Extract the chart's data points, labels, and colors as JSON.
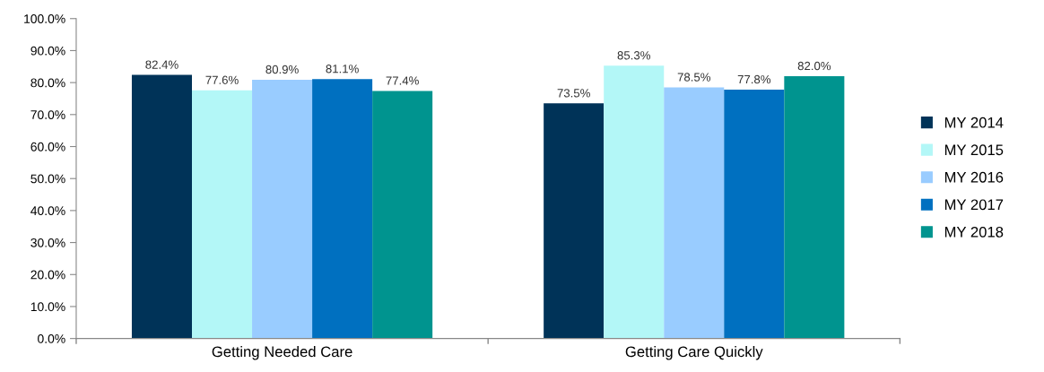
{
  "chart_data": {
    "type": "bar",
    "categories": [
      "Getting Needed Care",
      "Getting Care Quickly"
    ],
    "series": [
      {
        "name": "MY 2014",
        "color": "#003358",
        "values": [
          82.4,
          73.5
        ],
        "value_labels": [
          "82.4%",
          "73.5%"
        ]
      },
      {
        "name": "MY 2015",
        "color": "#b3f7f7",
        "values": [
          77.6,
          85.3
        ],
        "value_labels": [
          "77.6%",
          "85.3%"
        ]
      },
      {
        "name": "MY 2016",
        "color": "#99ccff",
        "values": [
          80.9,
          78.5
        ],
        "value_labels": [
          "80.9%",
          "78.5%"
        ]
      },
      {
        "name": "MY 2017",
        "color": "#0070c0",
        "values": [
          81.1,
          77.8
        ],
        "value_labels": [
          "81.1%",
          "77.8%"
        ]
      },
      {
        "name": "MY 2018",
        "color": "#00948f",
        "values": [
          77.4,
          82.0
        ],
        "value_labels": [
          "77.4%",
          "82.0%"
        ]
      }
    ],
    "ylim": [
      0,
      100
    ],
    "yticks": [
      {
        "value": 0,
        "label": "0.0%"
      },
      {
        "value": 10,
        "label": "10.0%"
      },
      {
        "value": 20,
        "label": "20.0%"
      },
      {
        "value": 30,
        "label": "30.0%"
      },
      {
        "value": 40,
        "label": "40.0%"
      },
      {
        "value": 50,
        "label": "50.0%"
      },
      {
        "value": 60,
        "label": "60.0%"
      },
      {
        "value": 70,
        "label": "70.0%"
      },
      {
        "value": 80,
        "label": "80.0%"
      },
      {
        "value": 90,
        "label": "90.0%"
      },
      {
        "value": 100,
        "label": "100.0%"
      }
    ],
    "grid": false,
    "legend": "right"
  }
}
